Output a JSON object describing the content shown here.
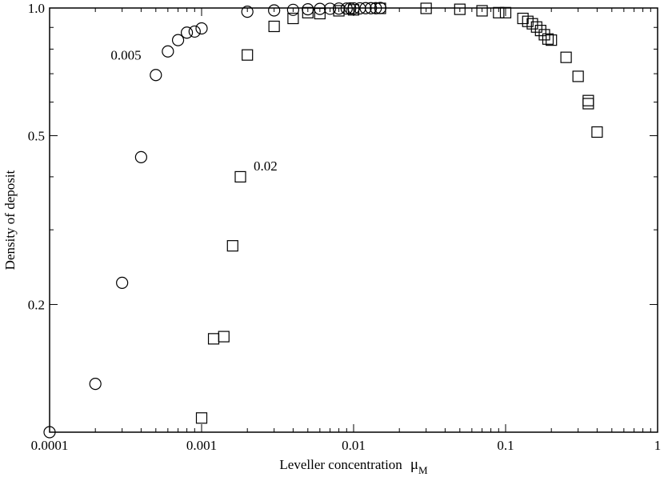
{
  "chart_data": {
    "type": "scatter",
    "xscale": "log",
    "yscale": "log",
    "xlim": [
      0.0001,
      1
    ],
    "ylim": [
      0.1,
      1.0
    ],
    "xlabel": "Leveller concentration",
    "xlabel_symbol": "μ",
    "xlabel_subscript": "M",
    "ylabel": "Density of deposit",
    "grid": false,
    "legend": "none",
    "x_ticks": [
      {
        "value": 0.0001,
        "label": "0.0001"
      },
      {
        "value": 0.001,
        "label": "0.001"
      },
      {
        "value": 0.01,
        "label": "0.01"
      },
      {
        "value": 0.1,
        "label": "0.1"
      },
      {
        "value": 1,
        "label": "1"
      }
    ],
    "y_ticks": [
      {
        "value": 0.2,
        "label": "0.2"
      },
      {
        "value": 0.5,
        "label": "0.5"
      },
      {
        "value": 1.0,
        "label": "1.0"
      }
    ],
    "series": [
      {
        "marker": "circle",
        "x": [
          0.0001,
          0.0002,
          0.0003,
          0.0004,
          0.0005,
          0.0006,
          0.0007,
          0.0008,
          0.0009,
          0.001,
          0.002,
          0.003,
          0.004,
          0.005,
          0.006,
          0.007,
          0.008,
          0.009,
          0.0095,
          0.01,
          0.011,
          0.012,
          0.013,
          0.014,
          0.015
        ],
        "y": [
          0.1,
          0.13,
          0.225,
          0.445,
          0.695,
          0.79,
          0.84,
          0.875,
          0.88,
          0.895,
          0.98,
          0.987,
          0.99,
          0.993,
          0.995,
          0.996,
          0.997,
          0.997,
          0.998,
          0.998,
          0.998,
          0.999,
          0.999,
          0.999,
          1.0
        ]
      },
      {
        "marker": "square",
        "x": [
          0.001,
          0.0012,
          0.0014,
          0.0016,
          0.0018,
          0.002,
          0.003,
          0.004,
          0.005,
          0.006,
          0.008,
          0.01,
          0.015,
          0.03,
          0.05,
          0.07,
          0.09,
          0.1,
          0.13,
          0.14,
          0.15,
          0.16,
          0.17,
          0.18,
          0.19,
          0.2,
          0.25,
          0.3,
          0.35,
          0.35,
          0.4
        ],
        "y": [
          0.108,
          0.166,
          0.168,
          0.275,
          0.4,
          0.775,
          0.905,
          0.945,
          0.975,
          0.97,
          0.985,
          0.99,
          0.998,
          0.998,
          0.993,
          0.985,
          0.975,
          0.975,
          0.945,
          0.93,
          0.918,
          0.902,
          0.885,
          0.865,
          0.845,
          0.84,
          0.765,
          0.69,
          0.605,
          0.595,
          0.51
        ]
      }
    ],
    "annotations": [
      {
        "text": "0.005",
        "x": 0.0004,
        "y": 0.775
      },
      {
        "text": "0.02",
        "x": 0.0022,
        "y": 0.425
      }
    ]
  }
}
